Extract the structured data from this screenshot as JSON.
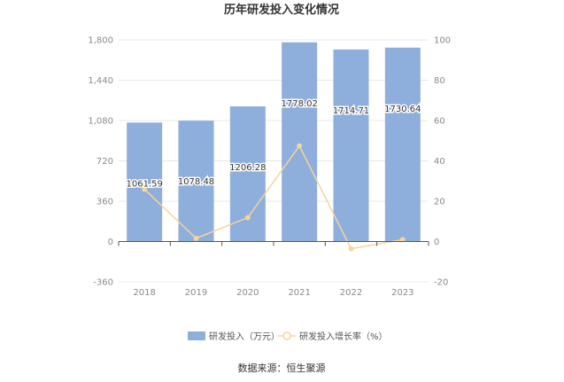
{
  "chart_data": {
    "type": "bar",
    "title": "历年研发投入变化情况",
    "categories": [
      "2018",
      "2019",
      "2020",
      "2021",
      "2022",
      "2023"
    ],
    "series": [
      {
        "name": "研发投入（万元）",
        "type": "bar",
        "axis": "left",
        "color": "#8eaedb",
        "values": [
          1061.59,
          1078.48,
          1206.28,
          1778.02,
          1714.71,
          1730.64
        ],
        "labels": [
          "1061.59",
          "1078.48",
          "1206.28",
          "1778.02",
          "1714.71",
          "1730.64"
        ]
      },
      {
        "name": "研发投入增长率（%）",
        "type": "line",
        "axis": "right",
        "color": "#f5d49f",
        "values": [
          25.9,
          1.59,
          11.85,
          47.4,
          -3.56,
          0.93
        ]
      }
    ],
    "y_left": {
      "min": -360,
      "max": 1800,
      "ticks": [
        "-360",
        "0",
        "360",
        "720",
        "1,080",
        "1,440",
        "1,800"
      ],
      "tick_values": [
        -360,
        0,
        360,
        720,
        1080,
        1440,
        1800
      ]
    },
    "y_right": {
      "min": -20,
      "max": 100,
      "ticks": [
        "-20",
        "0",
        "20",
        "40",
        "60",
        "80",
        "100"
      ],
      "tick_values": [
        -20,
        0,
        20,
        40,
        60,
        80,
        100
      ]
    },
    "grid": true,
    "legend_position": "bottom-center",
    "source": "数据来源：恒生聚源"
  }
}
